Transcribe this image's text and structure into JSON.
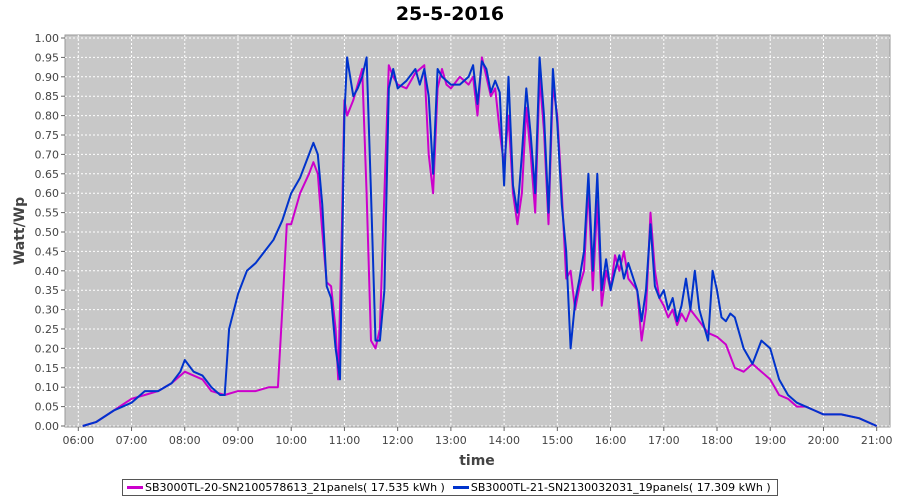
{
  "chart_data": {
    "type": "line",
    "title": "25-5-2016",
    "xlabel": "time",
    "ylabel": "Watt/Wp",
    "xlim": [
      "06:00",
      "21:00"
    ],
    "ylim": [
      0,
      1.0
    ],
    "x_ticks": [
      "06:00",
      "07:00",
      "08:00",
      "09:00",
      "10:00",
      "11:00",
      "12:00",
      "13:00",
      "14:00",
      "15:00",
      "16:00",
      "17:00",
      "18:00",
      "19:00",
      "20:00",
      "21:00"
    ],
    "y_ticks": [
      "0.00",
      "0.05",
      "0.10",
      "0.15",
      "0.20",
      "0.25",
      "0.30",
      "0.35",
      "0.40",
      "0.45",
      "0.50",
      "0.55",
      "0.60",
      "0.65",
      "0.70",
      "0.75",
      "0.80",
      "0.85",
      "0.90",
      "0.95",
      "1.00"
    ],
    "grid": true,
    "legend_position": "bottom",
    "series": [
      {
        "name": "SB3000TL-20-SN2100578613_21panels( 17.535 kWh )",
        "color": "#cc00cc",
        "points": [
          [
            "06:05",
            0.0
          ],
          [
            "06:20",
            0.01
          ],
          [
            "06:40",
            0.04
          ],
          [
            "07:00",
            0.07
          ],
          [
            "07:15",
            0.08
          ],
          [
            "07:30",
            0.09
          ],
          [
            "07:45",
            0.11
          ],
          [
            "07:55",
            0.13
          ],
          [
            "08:00",
            0.14
          ],
          [
            "08:10",
            0.13
          ],
          [
            "08:20",
            0.12
          ],
          [
            "08:30",
            0.09
          ],
          [
            "08:45",
            0.08
          ],
          [
            "09:00",
            0.09
          ],
          [
            "09:20",
            0.09
          ],
          [
            "09:35",
            0.1
          ],
          [
            "09:45",
            0.1
          ],
          [
            "09:50",
            0.3
          ],
          [
            "09:55",
            0.52
          ],
          [
            "10:00",
            0.52
          ],
          [
            "10:10",
            0.6
          ],
          [
            "10:20",
            0.65
          ],
          [
            "10:25",
            0.68
          ],
          [
            "10:30",
            0.65
          ],
          [
            "10:35",
            0.5
          ],
          [
            "10:40",
            0.37
          ],
          [
            "10:45",
            0.36
          ],
          [
            "10:50",
            0.25
          ],
          [
            "10:53",
            0.12
          ],
          [
            "10:57",
            0.5
          ],
          [
            "11:00",
            0.84
          ],
          [
            "11:03",
            0.8
          ],
          [
            "11:10",
            0.84
          ],
          [
            "11:15",
            0.88
          ],
          [
            "11:20",
            0.92
          ],
          [
            "11:25",
            0.6
          ],
          [
            "11:30",
            0.22
          ],
          [
            "11:35",
            0.2
          ],
          [
            "11:40",
            0.25
          ],
          [
            "11:45",
            0.6
          ],
          [
            "11:50",
            0.93
          ],
          [
            "11:55",
            0.9
          ],
          [
            "12:00",
            0.88
          ],
          [
            "12:10",
            0.87
          ],
          [
            "12:20",
            0.91
          ],
          [
            "12:30",
            0.93
          ],
          [
            "12:35",
            0.7
          ],
          [
            "12:40",
            0.6
          ],
          [
            "12:45",
            0.87
          ],
          [
            "12:50",
            0.92
          ],
          [
            "12:55",
            0.88
          ],
          [
            "13:00",
            0.87
          ],
          [
            "13:10",
            0.9
          ],
          [
            "13:20",
            0.88
          ],
          [
            "13:25",
            0.9
          ],
          [
            "13:30",
            0.8
          ],
          [
            "13:35",
            0.95
          ],
          [
            "13:40",
            0.9
          ],
          [
            "13:45",
            0.85
          ],
          [
            "13:50",
            0.87
          ],
          [
            "13:55",
            0.76
          ],
          [
            "14:00",
            0.67
          ],
          [
            "14:05",
            0.8
          ],
          [
            "14:10",
            0.6
          ],
          [
            "14:15",
            0.52
          ],
          [
            "14:20",
            0.6
          ],
          [
            "14:25",
            0.82
          ],
          [
            "14:30",
            0.7
          ],
          [
            "14:35",
            0.55
          ],
          [
            "14:40",
            0.9
          ],
          [
            "14:45",
            0.76
          ],
          [
            "14:50",
            0.52
          ],
          [
            "14:55",
            0.88
          ],
          [
            "15:00",
            0.8
          ],
          [
            "15:05",
            0.6
          ],
          [
            "15:10",
            0.38
          ],
          [
            "15:15",
            0.4
          ],
          [
            "15:20",
            0.3
          ],
          [
            "15:25",
            0.36
          ],
          [
            "15:30",
            0.4
          ],
          [
            "15:35",
            0.62
          ],
          [
            "15:40",
            0.35
          ],
          [
            "15:45",
            0.58
          ],
          [
            "15:50",
            0.31
          ],
          [
            "15:55",
            0.4
          ],
          [
            "16:00",
            0.35
          ],
          [
            "16:05",
            0.44
          ],
          [
            "16:10",
            0.4
          ],
          [
            "16:15",
            0.45
          ],
          [
            "16:20",
            0.38
          ],
          [
            "16:30",
            0.35
          ],
          [
            "16:35",
            0.22
          ],
          [
            "16:40",
            0.3
          ],
          [
            "16:45",
            0.55
          ],
          [
            "16:50",
            0.4
          ],
          [
            "16:55",
            0.33
          ],
          [
            "17:00",
            0.31
          ],
          [
            "17:05",
            0.28
          ],
          [
            "17:10",
            0.3
          ],
          [
            "17:15",
            0.26
          ],
          [
            "17:20",
            0.29
          ],
          [
            "17:25",
            0.27
          ],
          [
            "17:30",
            0.3
          ],
          [
            "17:40",
            0.27
          ],
          [
            "17:50",
            0.24
          ],
          [
            "18:00",
            0.23
          ],
          [
            "18:10",
            0.21
          ],
          [
            "18:20",
            0.15
          ],
          [
            "18:30",
            0.14
          ],
          [
            "18:40",
            0.16
          ],
          [
            "18:50",
            0.14
          ],
          [
            "19:00",
            0.12
          ],
          [
            "19:10",
            0.08
          ],
          [
            "19:20",
            0.07
          ],
          [
            "19:30",
            0.05
          ],
          [
            "19:40",
            0.05
          ],
          [
            "19:50",
            0.04
          ],
          [
            "20:00",
            0.03
          ],
          [
            "20:20",
            0.03
          ],
          [
            "20:40",
            0.02
          ],
          [
            "21:00",
            0.0
          ]
        ]
      },
      {
        "name": "SB3000TL-21-SN2130032031_19panels( 17.309 kWh )",
        "color": "#0033cc",
        "points": [
          [
            "06:05",
            0.0
          ],
          [
            "06:20",
            0.01
          ],
          [
            "06:40",
            0.04
          ],
          [
            "07:00",
            0.06
          ],
          [
            "07:15",
            0.09
          ],
          [
            "07:30",
            0.09
          ],
          [
            "07:45",
            0.11
          ],
          [
            "07:55",
            0.14
          ],
          [
            "08:00",
            0.17
          ],
          [
            "08:10",
            0.14
          ],
          [
            "08:20",
            0.13
          ],
          [
            "08:30",
            0.1
          ],
          [
            "08:40",
            0.08
          ],
          [
            "08:45",
            0.08
          ],
          [
            "08:50",
            0.25
          ],
          [
            "09:00",
            0.34
          ],
          [
            "09:10",
            0.4
          ],
          [
            "09:20",
            0.42
          ],
          [
            "09:30",
            0.45
          ],
          [
            "09:40",
            0.48
          ],
          [
            "09:50",
            0.53
          ],
          [
            "10:00",
            0.6
          ],
          [
            "10:10",
            0.64
          ],
          [
            "10:20",
            0.7
          ],
          [
            "10:25",
            0.73
          ],
          [
            "10:30",
            0.7
          ],
          [
            "10:35",
            0.57
          ],
          [
            "10:40",
            0.36
          ],
          [
            "10:45",
            0.33
          ],
          [
            "10:50",
            0.2
          ],
          [
            "10:55",
            0.12
          ],
          [
            "11:00",
            0.8
          ],
          [
            "11:03",
            0.95
          ],
          [
            "11:05",
            0.92
          ],
          [
            "11:10",
            0.85
          ],
          [
            "11:15",
            0.87
          ],
          [
            "11:20",
            0.9
          ],
          [
            "11:25",
            0.95
          ],
          [
            "11:30",
            0.6
          ],
          [
            "11:35",
            0.22
          ],
          [
            "11:40",
            0.22
          ],
          [
            "11:45",
            0.35
          ],
          [
            "11:50",
            0.87
          ],
          [
            "11:55",
            0.92
          ],
          [
            "12:00",
            0.87
          ],
          [
            "12:10",
            0.89
          ],
          [
            "12:20",
            0.92
          ],
          [
            "12:25",
            0.88
          ],
          [
            "12:30",
            0.92
          ],
          [
            "12:35",
            0.85
          ],
          [
            "12:40",
            0.65
          ],
          [
            "12:45",
            0.92
          ],
          [
            "12:50",
            0.9
          ],
          [
            "13:00",
            0.88
          ],
          [
            "13:10",
            0.88
          ],
          [
            "13:20",
            0.9
          ],
          [
            "13:25",
            0.93
          ],
          [
            "13:30",
            0.83
          ],
          [
            "13:35",
            0.94
          ],
          [
            "13:40",
            0.92
          ],
          [
            "13:45",
            0.86
          ],
          [
            "13:50",
            0.89
          ],
          [
            "13:55",
            0.86
          ],
          [
            "14:00",
            0.62
          ],
          [
            "14:05",
            0.9
          ],
          [
            "14:10",
            0.62
          ],
          [
            "14:15",
            0.55
          ],
          [
            "14:20",
            0.7
          ],
          [
            "14:25",
            0.87
          ],
          [
            "14:30",
            0.75
          ],
          [
            "14:35",
            0.6
          ],
          [
            "14:40",
            0.95
          ],
          [
            "14:45",
            0.8
          ],
          [
            "14:50",
            0.55
          ],
          [
            "14:55",
            0.92
          ],
          [
            "15:00",
            0.78
          ],
          [
            "15:05",
            0.57
          ],
          [
            "15:10",
            0.45
          ],
          [
            "15:15",
            0.2
          ],
          [
            "15:20",
            0.32
          ],
          [
            "15:25",
            0.38
          ],
          [
            "15:30",
            0.45
          ],
          [
            "15:35",
            0.65
          ],
          [
            "15:40",
            0.4
          ],
          [
            "15:45",
            0.65
          ],
          [
            "15:50",
            0.35
          ],
          [
            "15:55",
            0.43
          ],
          [
            "16:00",
            0.35
          ],
          [
            "16:05",
            0.4
          ],
          [
            "16:10",
            0.44
          ],
          [
            "16:15",
            0.38
          ],
          [
            "16:20",
            0.42
          ],
          [
            "16:30",
            0.35
          ],
          [
            "16:35",
            0.27
          ],
          [
            "16:40",
            0.35
          ],
          [
            "16:45",
            0.52
          ],
          [
            "16:50",
            0.36
          ],
          [
            "16:55",
            0.33
          ],
          [
            "17:00",
            0.35
          ],
          [
            "17:05",
            0.3
          ],
          [
            "17:10",
            0.33
          ],
          [
            "17:15",
            0.27
          ],
          [
            "17:20",
            0.31
          ],
          [
            "17:25",
            0.38
          ],
          [
            "17:30",
            0.3
          ],
          [
            "17:35",
            0.4
          ],
          [
            "17:40",
            0.3
          ],
          [
            "17:50",
            0.22
          ],
          [
            "17:55",
            0.4
          ],
          [
            "18:00",
            0.35
          ],
          [
            "18:05",
            0.28
          ],
          [
            "18:10",
            0.27
          ],
          [
            "18:15",
            0.29
          ],
          [
            "18:20",
            0.28
          ],
          [
            "18:30",
            0.2
          ],
          [
            "18:40",
            0.16
          ],
          [
            "18:50",
            0.22
          ],
          [
            "19:00",
            0.2
          ],
          [
            "19:10",
            0.12
          ],
          [
            "19:20",
            0.08
          ],
          [
            "19:30",
            0.06
          ],
          [
            "19:40",
            0.05
          ],
          [
            "19:50",
            0.04
          ],
          [
            "20:00",
            0.03
          ],
          [
            "20:20",
            0.03
          ],
          [
            "20:40",
            0.02
          ],
          [
            "21:00",
            0.0
          ]
        ]
      }
    ]
  }
}
